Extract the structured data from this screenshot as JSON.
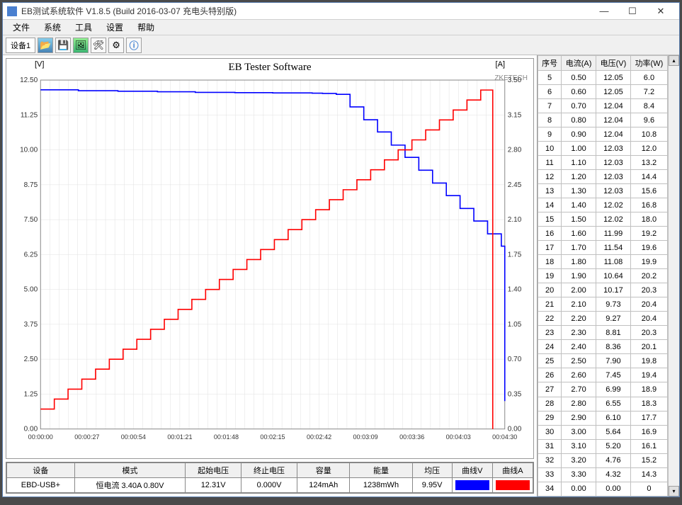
{
  "window": {
    "title": "EB测试系统软件 V1.8.5 (Build 2016-03-07 充电头特别版)"
  },
  "menu": {
    "items": [
      "文件",
      "系统",
      "工具",
      "设置",
      "帮助"
    ]
  },
  "toolbar": {
    "tab": "设备1"
  },
  "chart": {
    "title": "EB Tester Software",
    "watermark": "ZKETECH",
    "left_axis_label": "[V]",
    "right_axis_label": "[A]",
    "left_ticks": [
      "12.50",
      "11.25",
      "10.00",
      "8.75",
      "7.50",
      "6.25",
      "5.00",
      "3.75",
      "2.50",
      "1.25",
      "0.00"
    ],
    "right_ticks": [
      "3.50",
      "3.15",
      "2.80",
      "2.45",
      "2.10",
      "1.75",
      "1.40",
      "1.05",
      "0.70",
      "0.35",
      "0.00"
    ],
    "x_ticks": [
      "00:00:00",
      "00:00:27",
      "00:00:54",
      "00:01:21",
      "00:01:48",
      "00:02:15",
      "00:02:42",
      "00:03:09",
      "00:03:36",
      "00:04:03",
      "00:04:30"
    ],
    "voltage_color": "#0000ff",
    "current_color": "#ff0000",
    "grid_color": "#e0e0e0",
    "bg_color": "#ffffff",
    "voltage_data": [
      [
        0,
        12.15
      ],
      [
        22,
        12.12
      ],
      [
        45,
        12.1
      ],
      [
        68,
        12.08
      ],
      [
        90,
        12.06
      ],
      [
        113,
        12.05
      ],
      [
        135,
        12.04
      ],
      [
        158,
        12.03
      ],
      [
        164,
        12.02
      ],
      [
        172,
        11.99
      ],
      [
        180,
        11.54
      ],
      [
        188,
        11.08
      ],
      [
        196,
        10.64
      ],
      [
        204,
        10.17
      ],
      [
        212,
        9.73
      ],
      [
        220,
        9.27
      ],
      [
        228,
        8.81
      ],
      [
        236,
        8.36
      ],
      [
        244,
        7.9
      ],
      [
        252,
        7.45
      ],
      [
        260,
        6.99
      ],
      [
        268,
        6.55
      ],
      [
        270,
        1.0
      ]
    ],
    "current_data": [
      [
        0,
        0.2
      ],
      [
        8,
        0.3
      ],
      [
        16,
        0.4
      ],
      [
        24,
        0.5
      ],
      [
        32,
        0.6
      ],
      [
        40,
        0.7
      ],
      [
        48,
        0.8
      ],
      [
        56,
        0.9
      ],
      [
        64,
        1.0
      ],
      [
        72,
        1.1
      ],
      [
        80,
        1.2
      ],
      [
        88,
        1.3
      ],
      [
        96,
        1.4
      ],
      [
        104,
        1.5
      ],
      [
        112,
        1.6
      ],
      [
        120,
        1.7
      ],
      [
        128,
        1.8
      ],
      [
        136,
        1.9
      ],
      [
        144,
        2.0
      ],
      [
        152,
        2.1
      ],
      [
        160,
        2.2
      ],
      [
        168,
        2.3
      ],
      [
        176,
        2.4
      ],
      [
        184,
        2.5
      ],
      [
        192,
        2.6
      ],
      [
        200,
        2.7
      ],
      [
        208,
        2.8
      ],
      [
        216,
        2.9
      ],
      [
        224,
        3.0
      ],
      [
        232,
        3.1
      ],
      [
        240,
        3.2
      ],
      [
        248,
        3.3
      ],
      [
        256,
        3.4
      ],
      [
        262,
        3.4
      ],
      [
        263,
        0.0
      ]
    ]
  },
  "summary": {
    "headers": [
      "设备",
      "模式",
      "起始电压",
      "终止电压",
      "容量",
      "能量",
      "均压",
      "曲线V",
      "曲线A"
    ],
    "device": "EBD-USB+",
    "mode_label": "恒电流",
    "mode_values": "3.40A  0.80V",
    "start_v": "12.31V",
    "end_v": "0.000V",
    "capacity": "124mAh",
    "energy": "1238mWh",
    "avg_v": "9.95V",
    "curve_v_color": "#0000ff",
    "curve_a_color": "#ff0000"
  },
  "datatable": {
    "headers": [
      "序号",
      "电流(A)",
      "电压(V)",
      "功率(W)"
    ],
    "rows": [
      [
        "5",
        "0.50",
        "12.05",
        "6.0"
      ],
      [
        "6",
        "0.60",
        "12.05",
        "7.2"
      ],
      [
        "7",
        "0.70",
        "12.04",
        "8.4"
      ],
      [
        "8",
        "0.80",
        "12.04",
        "9.6"
      ],
      [
        "9",
        "0.90",
        "12.04",
        "10.8"
      ],
      [
        "10",
        "1.00",
        "12.03",
        "12.0"
      ],
      [
        "11",
        "1.10",
        "12.03",
        "13.2"
      ],
      [
        "12",
        "1.20",
        "12.03",
        "14.4"
      ],
      [
        "13",
        "1.30",
        "12.03",
        "15.6"
      ],
      [
        "14",
        "1.40",
        "12.02",
        "16.8"
      ],
      [
        "15",
        "1.50",
        "12.02",
        "18.0"
      ],
      [
        "16",
        "1.60",
        "11.99",
        "19.2"
      ],
      [
        "17",
        "1.70",
        "11.54",
        "19.6"
      ],
      [
        "18",
        "1.80",
        "11.08",
        "19.9"
      ],
      [
        "19",
        "1.90",
        "10.64",
        "20.2"
      ],
      [
        "20",
        "2.00",
        "10.17",
        "20.3"
      ],
      [
        "21",
        "2.10",
        "9.73",
        "20.4"
      ],
      [
        "22",
        "2.20",
        "9.27",
        "20.4"
      ],
      [
        "23",
        "2.30",
        "8.81",
        "20.3"
      ],
      [
        "24",
        "2.40",
        "8.36",
        "20.1"
      ],
      [
        "25",
        "2.50",
        "7.90",
        "19.8"
      ],
      [
        "26",
        "2.60",
        "7.45",
        "19.4"
      ],
      [
        "27",
        "2.70",
        "6.99",
        "18.9"
      ],
      [
        "28",
        "2.80",
        "6.55",
        "18.3"
      ],
      [
        "29",
        "2.90",
        "6.10",
        "17.7"
      ],
      [
        "30",
        "3.00",
        "5.64",
        "16.9"
      ],
      [
        "31",
        "3.10",
        "5.20",
        "16.1"
      ],
      [
        "32",
        "3.20",
        "4.76",
        "15.2"
      ],
      [
        "33",
        "3.30",
        "4.32",
        "14.3"
      ],
      [
        "34",
        "0.00",
        "0.00",
        "0"
      ]
    ]
  }
}
